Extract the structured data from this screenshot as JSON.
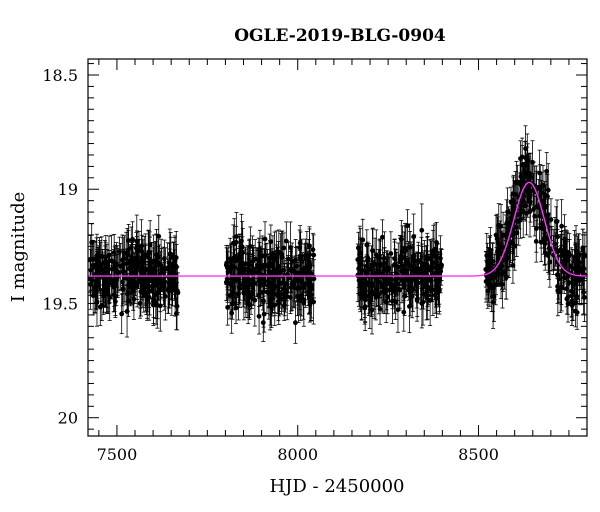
{
  "chart_data": {
    "type": "scatter",
    "title": "OGLE-2019-BLG-0904",
    "xlabel": "HJD - 2450000",
    "ylabel": "I magnitude",
    "xlim": [
      7420,
      8800
    ],
    "ylim": [
      20.08,
      18.43
    ],
    "y_inverted": true,
    "x_ticks": [
      7500,
      8000,
      8500
    ],
    "x_tick_labels": [
      "7500",
      "8000",
      "8500"
    ],
    "y_ticks": [
      18.5,
      19,
      19.5,
      20
    ],
    "y_tick_labels": [
      "18.5",
      "19",
      "19.5",
      "20"
    ],
    "grid": false,
    "series": [
      {
        "kind": "points_with_errorbars",
        "color": "#000000",
        "seasons": [
          {
            "x_start": 7425,
            "x_end": 7670,
            "mag_mean": 19.4,
            "mag_scatter": 0.1,
            "err": 0.09
          },
          {
            "x_start": 7800,
            "x_end": 8045,
            "mag_mean": 19.42,
            "mag_scatter": 0.1,
            "err": 0.09
          },
          {
            "x_start": 8165,
            "x_end": 8400,
            "mag_mean": 19.43,
            "mag_scatter": 0.1,
            "err": 0.09
          },
          {
            "x_start": 8520,
            "x_end": 8795,
            "mag_mean": 19.35,
            "mag_scatter": 0.11,
            "err": 0.09
          }
        ]
      },
      {
        "kind": "model_curve",
        "color": "#ff33ff",
        "baseline": 19.38,
        "peak_time": 8640,
        "peak_mag": 18.97,
        "width_days": 42
      }
    ]
  }
}
